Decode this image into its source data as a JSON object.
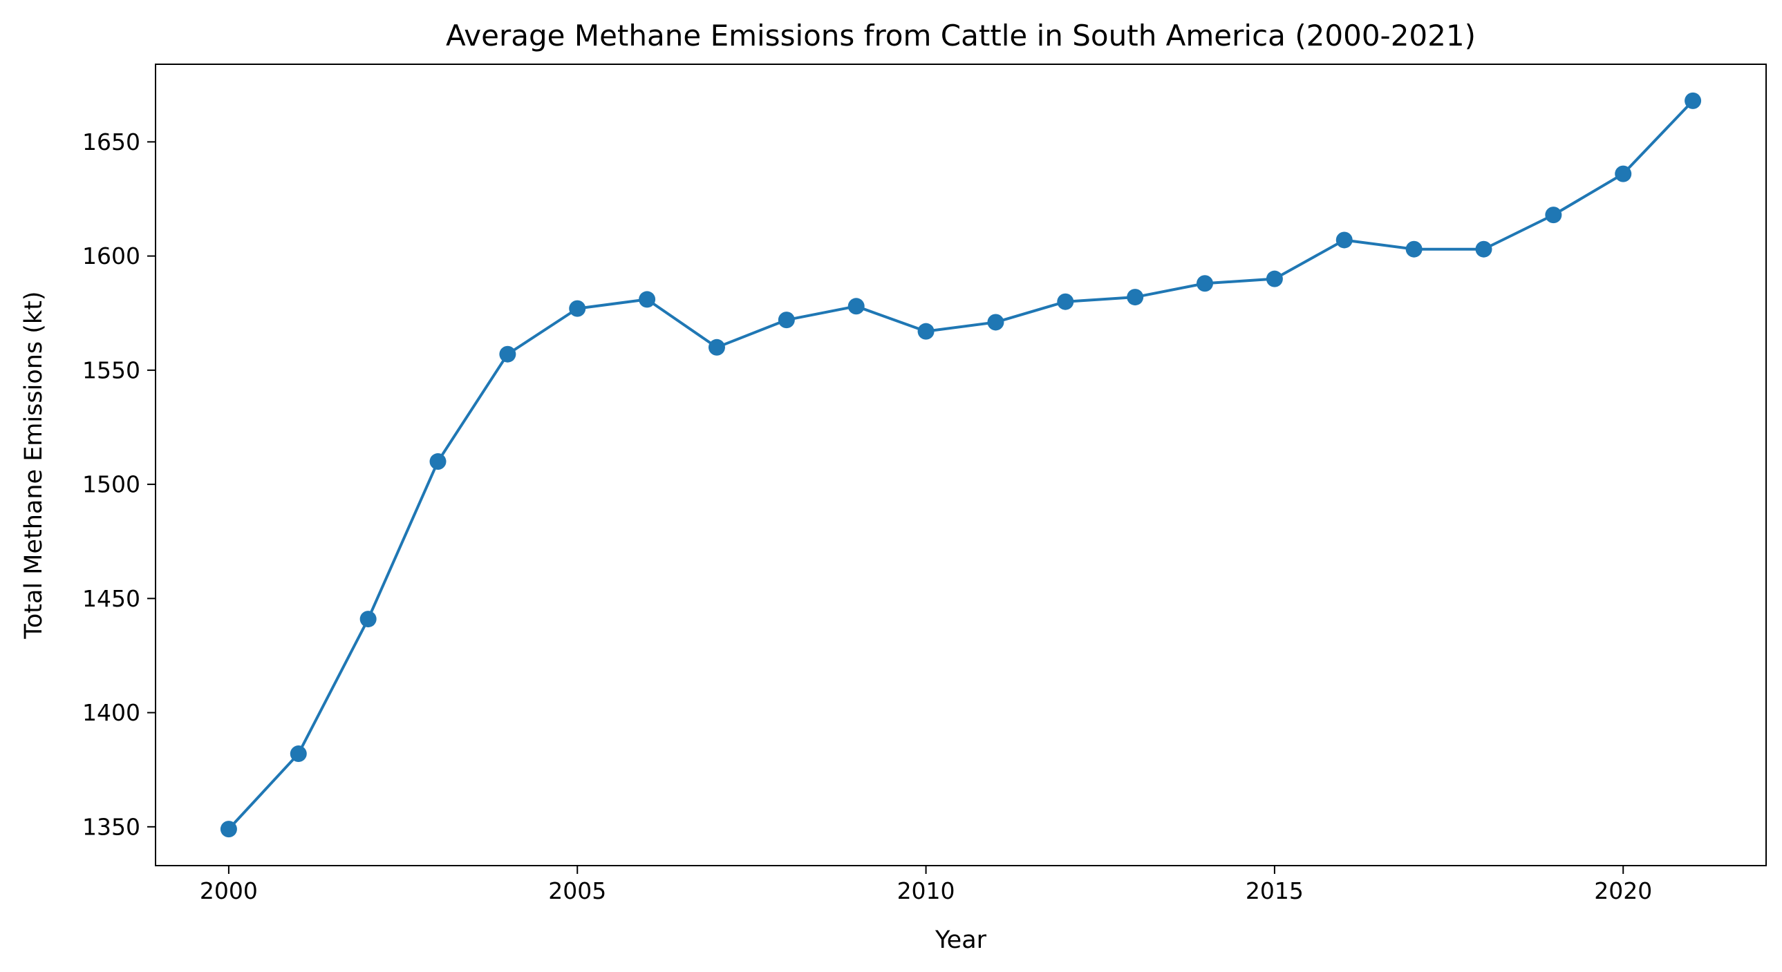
{
  "chart_data": {
    "type": "line",
    "title": "Average Methane Emissions from Cattle in South America (2000-2021)",
    "xlabel": "Year",
    "ylabel": "Total Methane Emissions (kt)",
    "x": [
      2000,
      2001,
      2002,
      2003,
      2004,
      2005,
      2006,
      2007,
      2008,
      2009,
      2010,
      2011,
      2012,
      2013,
      2014,
      2015,
      2016,
      2017,
      2018,
      2019,
      2020,
      2021
    ],
    "series": [
      {
        "values": [
          1349,
          1382,
          1441,
          1510,
          1557,
          1577,
          1581,
          1560,
          1572,
          1578,
          1567,
          1571,
          1580,
          1582,
          1588,
          1590,
          1607,
          1603,
          1603,
          1618,
          1636,
          1668
        ],
        "color": "#1f77b4",
        "marker": "circle"
      }
    ],
    "xlim": [
      1998.95,
      2022.05
    ],
    "ylim": [
      1333,
      1684
    ],
    "xticks": [
      "2000",
      "2005",
      "2010",
      "2015",
      "2020"
    ],
    "yticks": [
      "1350",
      "1400",
      "1450",
      "1500",
      "1550",
      "1600",
      "1650"
    ],
    "grid": false,
    "legend": "none"
  }
}
